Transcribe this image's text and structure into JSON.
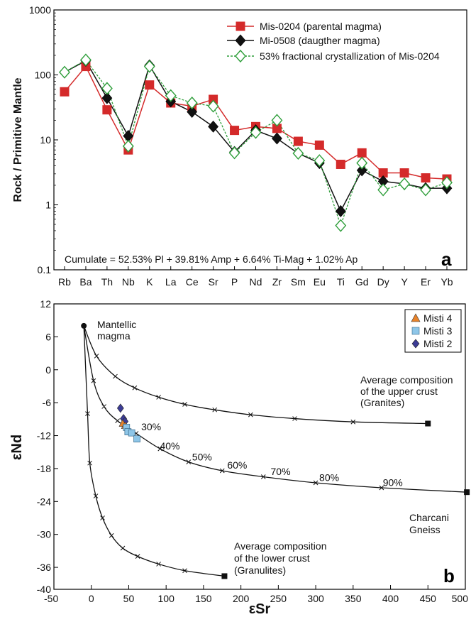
{
  "chart_data": [
    {
      "type": "line",
      "panel_label": "a",
      "ylabel": "Rock / Primitive Mantle",
      "yscale": "log",
      "ylim": [
        0.1,
        1000
      ],
      "yticks": [
        "0.1",
        "1",
        "10",
        "100",
        "1000"
      ],
      "categories": [
        "Rb",
        "Ba",
        "Th",
        "Nb",
        "K",
        "La",
        "Ce",
        "Sr",
        "P",
        "Nd",
        "Zr",
        "Sm",
        "Eu",
        "Ti",
        "Gd",
        "Dy",
        "Y",
        "Er",
        "Yb"
      ],
      "legend_position": "top-right",
      "series": [
        {
          "name": "Mis-0204 (parental magma)",
          "color": "#d42a2a",
          "marker": "square",
          "line": "solid",
          "values": [
            55,
            135,
            29,
            7,
            70,
            37,
            33,
            42,
            14,
            16,
            15,
            9.5,
            8.3,
            4.2,
            6.3,
            3.1,
            3.1,
            2.6,
            2.5
          ]
        },
        {
          "name": "Mi-0508 (daugther magma)",
          "color": "#111111",
          "marker": "diamond",
          "line": "solid",
          "values": [
            110,
            165,
            44,
            11.5,
            140,
            39,
            27,
            16,
            6.5,
            14,
            10.5,
            6.2,
            4.4,
            0.8,
            3.4,
            2.3,
            2.1,
            1.8,
            1.8
          ]
        },
        {
          "name": "53% fractional crystallization of Mis-0204",
          "color": "#2e9e3a",
          "marker": "diamond-open",
          "line": "dashed",
          "values": [
            110,
            170,
            62,
            8,
            135,
            48,
            37,
            33,
            6.3,
            13,
            20,
            6.2,
            4.8,
            0.48,
            4.4,
            1.7,
            2.1,
            1.7,
            2.2
          ]
        }
      ],
      "annotation": "Cumulate = 52.53% Pl + 39.81% Amp + 6.64% Ti-Mag + 1.02% Ap"
    },
    {
      "type": "scatter",
      "panel_label": "b",
      "xlabel": "εSr",
      "ylabel": "εNd",
      "xlim": [
        -50,
        500
      ],
      "ylim": [
        -40,
        12
      ],
      "xticks": [
        "-50",
        "0",
        "50",
        "100",
        "150",
        "200",
        "250",
        "300",
        "350",
        "400",
        "450",
        "500"
      ],
      "yticks": [
        "12",
        "6",
        "0",
        "-6",
        "-12",
        "-18",
        "-24",
        "-30",
        "-36",
        "-40"
      ],
      "legend_position": "top-right",
      "legend": [
        {
          "name": "Misti 4",
          "color": "#e8832a",
          "marker": "triangle"
        },
        {
          "name": "Misti 3",
          "color": "#8ec6e8",
          "marker": "square"
        },
        {
          "name": "Misti 2",
          "color": "#3c3c96",
          "marker": "diamond"
        }
      ],
      "mixing_curves": [
        {
          "name": "upper crust",
          "points": [
            [
              -10,
              8
            ],
            [
              7,
              2.5
            ],
            [
              32,
              -1.2
            ],
            [
              58,
              -3.3
            ],
            [
              90,
              -5
            ],
            [
              125,
              -6.3
            ],
            [
              165,
              -7.3
            ],
            [
              213,
              -8.2
            ],
            [
              272,
              -8.9
            ],
            [
              350,
              -9.5
            ],
            [
              450,
              -9.8
            ]
          ]
        },
        {
          "name": "Charcani Gneiss",
          "points": [
            [
              -10,
              8
            ],
            [
              3,
              -2
            ],
            [
              17,
              -6.7
            ],
            [
              35,
              -9.3
            ],
            [
              60,
              -11.6
            ],
            [
              92,
              -14.4
            ],
            [
              130,
              -16.8
            ],
            [
              175,
              -18.4
            ],
            [
              230,
              -19.5
            ],
            [
              300,
              -20.6
            ],
            [
              388,
              -21.5
            ],
            [
              502,
              -22.3
            ]
          ]
        },
        {
          "name": "lower crust",
          "points": [
            [
              -10,
              8
            ],
            [
              -5,
              -8
            ],
            [
              -2,
              -17
            ],
            [
              6,
              -23
            ],
            [
              15,
              -27
            ],
            [
              27,
              -30.2
            ],
            [
              42,
              -32.5
            ],
            [
              62,
              -34
            ],
            [
              90,
              -35.4
            ],
            [
              125,
              -36.6
            ],
            [
              178,
              -37.6
            ]
          ]
        }
      ],
      "endmembers": [
        {
          "name": "Mantellic magma",
          "x": -10,
          "y": 8,
          "marker": "circle"
        },
        {
          "name": "Upper crust",
          "x": 450,
          "y": -9.8,
          "marker": "square"
        },
        {
          "name": "Charcani Gneiss",
          "x": 502,
          "y": -22.3,
          "marker": "square"
        },
        {
          "name": "Lower crust",
          "x": 178,
          "y": -37.6,
          "marker": "square"
        }
      ],
      "samples": [
        {
          "group": "Misti 2",
          "x": 39,
          "y": -7
        },
        {
          "group": "Misti 2",
          "x": 43,
          "y": -8.9
        },
        {
          "group": "Misti 2",
          "x": 45,
          "y": -9.4
        },
        {
          "group": "Misti 4",
          "x": 42,
          "y": -9.8
        },
        {
          "group": "Misti 4",
          "x": 45,
          "y": -10.2
        },
        {
          "group": "Misti 3",
          "x": 47,
          "y": -10.5
        },
        {
          "group": "Misti 3",
          "x": 49,
          "y": -11.3
        },
        {
          "group": "Misti 3",
          "x": 54,
          "y": -11.5
        },
        {
          "group": "Misti 3",
          "x": 61,
          "y": -12.6
        }
      ],
      "percent_labels": [
        {
          "text": "30%",
          "x": 80,
          "y": -11
        },
        {
          "text": "40%",
          "x": 105,
          "y": -14.5
        },
        {
          "text": "50%",
          "x": 148,
          "y": -16.5
        },
        {
          "text": "60%",
          "x": 195,
          "y": -18
        },
        {
          "text": "70%",
          "x": 253,
          "y": -19.2
        },
        {
          "text": "80%",
          "x": 318,
          "y": -20.3
        },
        {
          "text": "90%",
          "x": 403,
          "y": -21.2
        }
      ],
      "annotations": {
        "mantle": [
          "Mantellic",
          "magma"
        ],
        "upper": [
          "Average composition",
          "of the upper crust",
          "(Granites)"
        ],
        "charcani": [
          "Charcani",
          "Gneiss"
        ],
        "lower": [
          "Average composition",
          "of the lower crust",
          "(Granulites)"
        ]
      }
    }
  ]
}
